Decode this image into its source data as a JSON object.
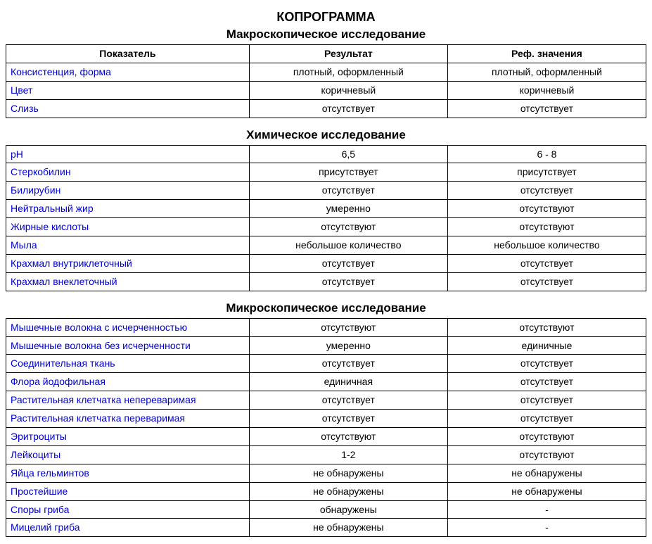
{
  "title": "КОПРОГРАММА",
  "columns": {
    "param": "Показатель",
    "result": "Результат",
    "ref": "Реф. значения"
  },
  "link_color": "#0000cc",
  "border_color": "#000000",
  "sections": [
    {
      "title": "Макроскопическое исследование",
      "show_header": true,
      "rows": [
        {
          "param": "Консистенция, форма",
          "result": "плотный, оформленный",
          "ref": "плотный, оформленный"
        },
        {
          "param": "Цвет",
          "result": "коричневый",
          "ref": "коричневый"
        },
        {
          "param": "Слизь",
          "result": "отсутствует",
          "ref": "отсутствует"
        }
      ]
    },
    {
      "title": "Химическое исследование",
      "show_header": false,
      "rows": [
        {
          "param": "pH",
          "result": "6,5",
          "ref": "6 - 8"
        },
        {
          "param": "Стеркобилин",
          "result": "присутствует",
          "ref": "присутствует"
        },
        {
          "param": "Билирубин",
          "result": "отсутствует",
          "ref": "отсутствует"
        },
        {
          "param": "Нейтральный жир",
          "result": "умеренно",
          "ref": "отсутствуют"
        },
        {
          "param": "Жирные кислоты",
          "result": "отсутствуют",
          "ref": "отсутствуют"
        },
        {
          "param": "Мыла",
          "result": "небольшое количество",
          "ref": "небольшое количество"
        },
        {
          "param": "Крахмал внутриклеточный",
          "result": "отсутствует",
          "ref": "отсутствует"
        },
        {
          "param": "Крахмал внеклеточный",
          "result": "отсутствует",
          "ref": "отсутствует"
        }
      ]
    },
    {
      "title": "Микроскопическое исследование",
      "show_header": false,
      "rows": [
        {
          "param": "Мышечные волокна с исчерченностью",
          "result": "отсутствуют",
          "ref": "отсутствуют"
        },
        {
          "param": "Мышечные волокна без исчерченности",
          "result": "умеренно",
          "ref": "единичные"
        },
        {
          "param": "Соединительная ткань",
          "result": "отсутствует",
          "ref": "отсутствует"
        },
        {
          "param": "Флора йодофильная",
          "result": "единичная",
          "ref": "отсутствует"
        },
        {
          "param": "Растительная клетчатка непереваримая",
          "result": "отсутствует",
          "ref": "отсутствует"
        },
        {
          "param": "Растительная клетчатка переваримая",
          "result": "отсутствует",
          "ref": "отсутствует"
        },
        {
          "param": "Эритроциты",
          "result": "отсутствуют",
          "ref": "отсутствуют"
        },
        {
          "param": "Лейкоциты",
          "result": "1-2",
          "ref": "отсутствуют"
        },
        {
          "param": "Яйца гельминтов",
          "result": "не обнаружены",
          "ref": "не обнаружены"
        },
        {
          "param": "Простейшие",
          "result": "не обнаружены",
          "ref": "не обнаружены"
        },
        {
          "param": "Споры гриба",
          "result": "обнаружены",
          "ref": "-"
        },
        {
          "param": "Мицелий гриба",
          "result": "не обнаружены",
          "ref": "-"
        }
      ]
    }
  ]
}
